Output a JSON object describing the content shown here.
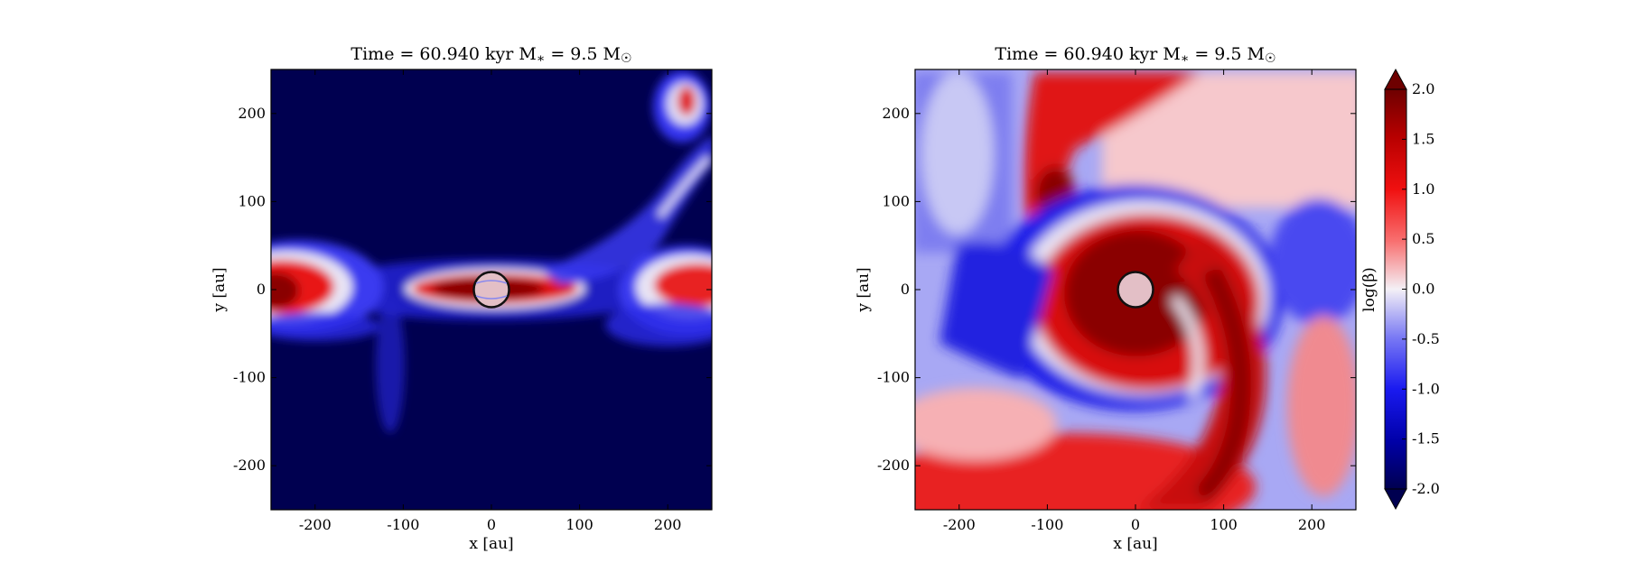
{
  "colors": {
    "background_low": "#000050",
    "mid": "#f0f0f8",
    "high": "#7a0000",
    "star_fill": "#e3bfc6",
    "star_edge": "#111111"
  },
  "chart_data": [
    {
      "type": "heatmap",
      "title": "Time = 60.940 kyr    M_* = 9.5 M_☉",
      "xlabel": "x [au]",
      "ylabel": "y [au]",
      "xlim": [
        -250,
        250
      ],
      "ylim": [
        -250,
        250
      ],
      "xticks": [
        -200,
        -100,
        0,
        100,
        200
      ],
      "yticks": [
        -200,
        -100,
        0,
        100,
        200
      ],
      "xtick_labels": [
        "-200",
        "-100",
        "0",
        "100",
        "200"
      ],
      "ytick_labels": [
        "-200",
        "-100",
        "0",
        "100",
        "200"
      ],
      "colormap": "seismic",
      "clim": [
        -2.0,
        2.0
      ],
      "star": {
        "x": 0,
        "y": 0,
        "radius": 20
      },
      "features": [
        {
          "kind": "bright",
          "cx": 0,
          "cy": 0,
          "rx": 90,
          "ry": 13,
          "value": 2.0
        },
        {
          "kind": "bright",
          "cx": -225,
          "cy": 5,
          "rx": 40,
          "ry": 30,
          "value": 1.2
        },
        {
          "kind": "bright",
          "cx": 210,
          "cy": 0,
          "rx": 45,
          "ry": 25,
          "value": 1.0
        },
        {
          "kind": "bright",
          "cx": 220,
          "cy": 205,
          "rx": 20,
          "ry": 12,
          "value": 0.8
        },
        {
          "kind": "dim",
          "cx": -110,
          "cy": -80,
          "rx": 12,
          "ry": 80,
          "value": -1.3
        }
      ],
      "grid": false
    },
    {
      "type": "heatmap",
      "title": "Time = 60.940 kyr    M_* = 9.5 M_☉",
      "xlabel": "x [au]",
      "ylabel": "y [au]",
      "xlim": [
        -250,
        250
      ],
      "ylim": [
        -250,
        250
      ],
      "xticks": [
        -200,
        -100,
        0,
        100,
        200
      ],
      "yticks": [
        -200,
        -100,
        0,
        100,
        200
      ],
      "xtick_labels": [
        "-200",
        "-100",
        "0",
        "100",
        "200"
      ],
      "ytick_labels": [
        "-200",
        "-100",
        "0",
        "100",
        "200"
      ],
      "colormap": "seismic",
      "clim": [
        -2.0,
        2.0
      ],
      "star": {
        "x": 0,
        "y": 0,
        "radius": 20
      },
      "colorbar": {
        "label": "log(β)",
        "ticks": [
          2.0,
          1.5,
          1.0,
          0.5,
          0.0,
          -0.5,
          -1.0,
          -1.5,
          -2.0
        ],
        "tick_labels": [
          "2.0",
          "1.5",
          "1.0",
          "0.5",
          "0.0",
          "-0.5",
          "-1.0",
          "-1.5",
          "-2.0"
        ],
        "extend": "both"
      },
      "grid": false
    }
  ]
}
